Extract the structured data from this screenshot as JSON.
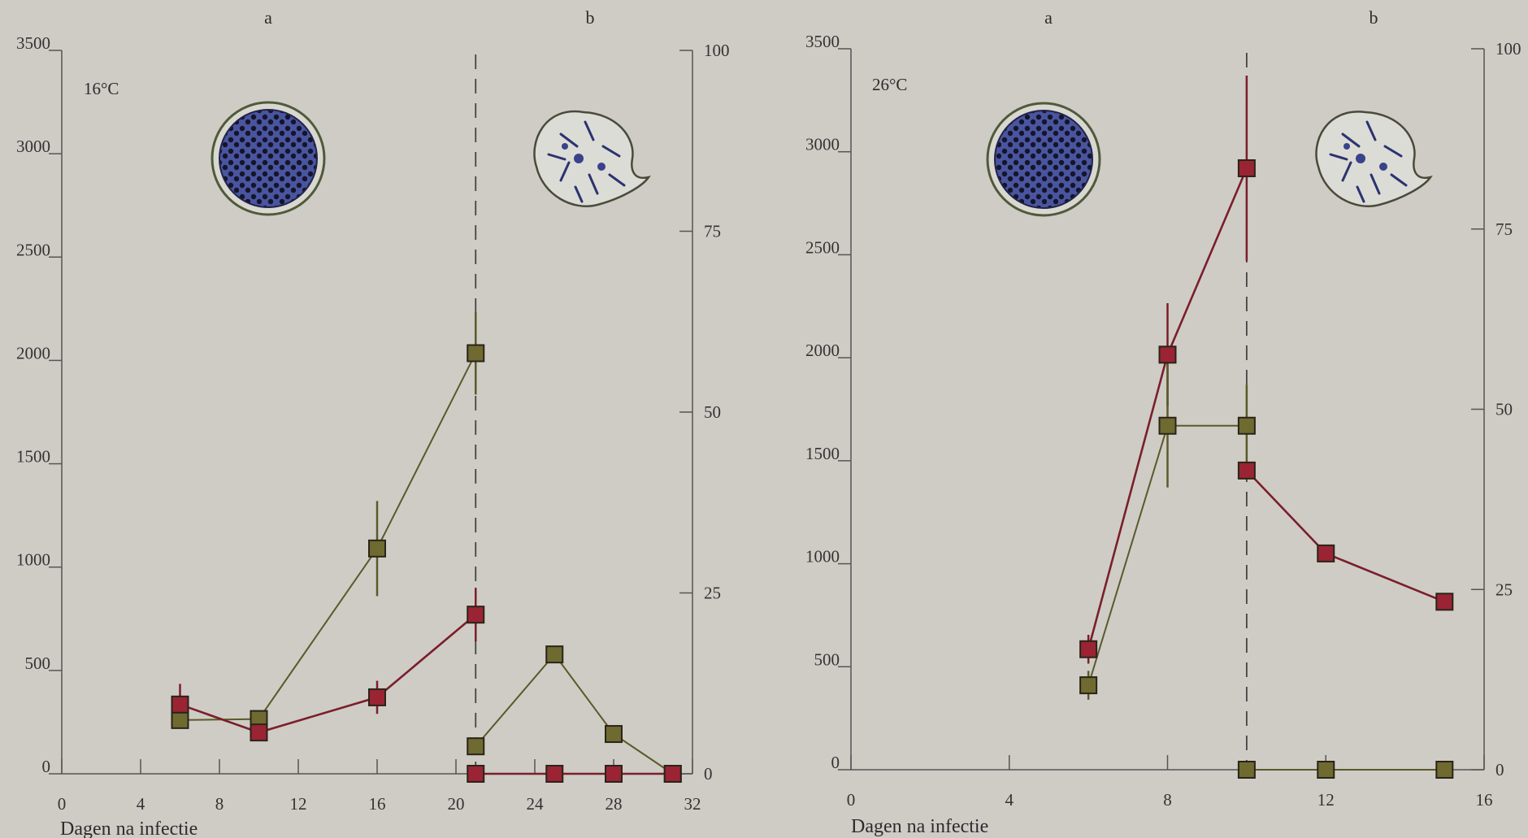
{
  "colors": {
    "background": "#cfccc6",
    "axis": "#555555",
    "red_series": "#7a1f2a",
    "red_marker": "#9a2433",
    "olive_series": "#5a5a2a",
    "olive_marker": "#6f6a30",
    "cell_fill": "#3e4a8f",
    "cell_outline": "#5a6a40"
  },
  "chart_data": [
    {
      "type": "line",
      "temperature_label": "16°C",
      "phase_labels": [
        "a",
        "b"
      ],
      "xlabel": "Dagen na infectie",
      "x_ticks": [
        "0",
        "4",
        "8",
        "12",
        "16",
        "20",
        "24",
        "28",
        "32"
      ],
      "xlim": [
        0,
        32
      ],
      "y_left_ticks": [
        "0",
        "500",
        "1000",
        "1500",
        "2000",
        "2500",
        "3000",
        "3500"
      ],
      "ylim_left": [
        0,
        3500
      ],
      "y_right_ticks": [
        "0",
        "25",
        "50",
        "75",
        "100"
      ],
      "ylim_right": [
        0,
        100
      ],
      "phase_divider_x": 21,
      "series": [
        {
          "color": "olive",
          "axis": "left",
          "points": [
            {
              "x": 6,
              "y": 260,
              "err": 0
            },
            {
              "x": 10,
              "y": 265,
              "err": 0
            },
            {
              "x": 16,
              "y": 1090,
              "err": 230
            },
            {
              "x": 21,
              "y": 2035,
              "err": 200
            }
          ]
        },
        {
          "color": "red",
          "axis": "left",
          "points": [
            {
              "x": 6,
              "y": 335,
              "err": 100
            },
            {
              "x": 10,
              "y": 200,
              "err": 0
            },
            {
              "x": 16,
              "y": 370,
              "err": 80
            },
            {
              "x": 21,
              "y": 770,
              "err": 130
            }
          ]
        },
        {
          "color": "olive",
          "axis": "right",
          "points": [
            {
              "x": 21,
              "y": 3.8,
              "err": 0
            },
            {
              "x": 25,
              "y": 16.5,
              "err": 0
            },
            {
              "x": 28,
              "y": 5.5,
              "err": 0
            },
            {
              "x": 31,
              "y": 0,
              "err": 0
            }
          ]
        },
        {
          "color": "red",
          "axis": "right",
          "points": [
            {
              "x": 21,
              "y": 0,
              "err": 0
            },
            {
              "x": 25,
              "y": 0,
              "err": 0
            },
            {
              "x": 28,
              "y": 0,
              "err": 0
            },
            {
              "x": 31,
              "y": 0,
              "err": 0
            }
          ]
        }
      ]
    },
    {
      "type": "line",
      "temperature_label": "26°C",
      "phase_labels": [
        "a",
        "b"
      ],
      "xlabel": "Dagen na infectie",
      "x_ticks": [
        "0",
        "4",
        "8",
        "12",
        "16"
      ],
      "xlim": [
        0,
        16
      ],
      "y_left_ticks": [
        "0",
        "500",
        "1000",
        "1500",
        "2000",
        "2500",
        "3000",
        "3500"
      ],
      "ylim_left": [
        0,
        3500
      ],
      "y_right_ticks": [
        "0",
        "25",
        "50",
        "75",
        "100"
      ],
      "ylim_right": [
        0,
        100
      ],
      "phase_divider_x": 10,
      "series": [
        {
          "color": "red",
          "axis": "left",
          "points": [
            {
              "x": 6,
              "y": 585,
              "err": 70
            },
            {
              "x": 8,
              "y": 2015,
              "err": 250
            },
            {
              "x": 10,
              "y": 2920,
              "err": 450
            }
          ]
        },
        {
          "color": "olive",
          "axis": "left",
          "points": [
            {
              "x": 6,
              "y": 410,
              "err": 70
            },
            {
              "x": 8,
              "y": 1670,
              "err": 300
            },
            {
              "x": 10,
              "y": 1670,
              "err": 200
            }
          ]
        },
        {
          "color": "red",
          "axis": "right",
          "points": [
            {
              "x": 10,
              "y": 41.5,
              "err": 0
            },
            {
              "x": 12,
              "y": 30,
              "err": 0
            },
            {
              "x": 15,
              "y": 23.3,
              "err": 0
            }
          ]
        },
        {
          "color": "olive",
          "axis": "right",
          "points": [
            {
              "x": 10,
              "y": 0,
              "err": 0
            },
            {
              "x": 12,
              "y": 0,
              "err": 0
            },
            {
              "x": 15,
              "y": 0,
              "err": 0
            }
          ]
        }
      ]
    }
  ]
}
